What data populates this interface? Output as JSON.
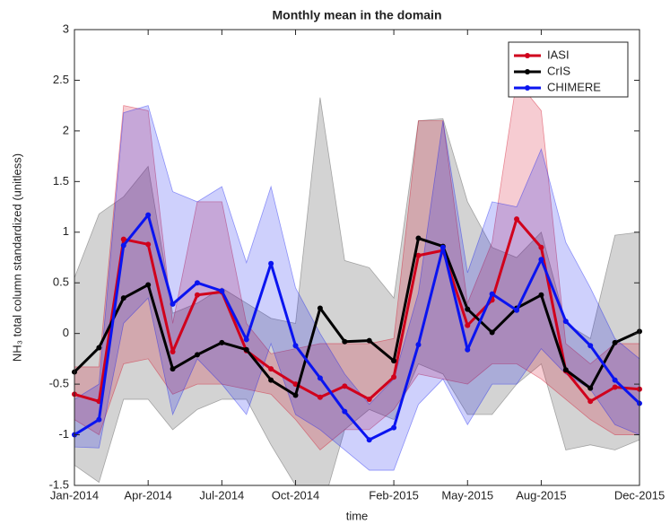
{
  "chart_data": {
    "type": "line",
    "title": "Monthly mean in the domain",
    "x_label": "time",
    "y_label": "NH₃ total column standardized (unitless)",
    "categories": [
      "Jan-2014",
      null,
      null,
      "Apr-2014",
      null,
      null,
      "Jul-2014",
      null,
      null,
      "Oct-2014",
      null,
      null,
      null,
      "Feb-2015",
      null,
      null,
      "May-2015",
      null,
      null,
      "Aug-2015",
      null,
      null,
      null,
      "Dec-2015"
    ],
    "ylim": [
      -1.5,
      3
    ],
    "yticks": [
      -1.5,
      -1,
      -0.5,
      0,
      0.5,
      1,
      1.5,
      2,
      2.5,
      3
    ],
    "grid": false,
    "legend": "top-right",
    "series": [
      {
        "name": "IASI",
        "color": "#d0001c",
        "values": [
          -0.6,
          -0.67,
          0.93,
          0.88,
          -0.18,
          0.38,
          0.41,
          -0.17,
          -0.35,
          -0.5,
          -0.63,
          -0.52,
          -0.65,
          -0.43,
          0.77,
          0.82,
          0.08,
          0.33,
          1.13,
          0.85,
          -0.37,
          -0.67,
          -0.53,
          -0.55
        ],
        "upper": [
          -0.33,
          -0.33,
          2.25,
          2.2,
          0.1,
          1.3,
          1.3,
          0.1,
          -0.2,
          -0.15,
          -0.1,
          -0.1,
          -0.1,
          -0.05,
          2.1,
          2.1,
          0.3,
          0.9,
          2.5,
          2.2,
          -0.1,
          -0.3,
          -0.1,
          -0.1
        ],
        "lower": [
          -0.85,
          -1.0,
          -0.3,
          -0.25,
          -0.6,
          -0.5,
          -0.5,
          -0.55,
          -0.6,
          -0.85,
          -1.15,
          -0.95,
          -0.95,
          -0.75,
          -0.4,
          -0.45,
          -0.5,
          -0.3,
          -0.3,
          -0.45,
          -0.65,
          -0.85,
          -1.0,
          -1.0
        ]
      },
      {
        "name": "CrIS",
        "color": "#000000",
        "values": [
          -0.38,
          -0.14,
          0.35,
          0.48,
          -0.35,
          -0.21,
          -0.09,
          -0.16,
          -0.46,
          -0.61,
          0.25,
          -0.08,
          -0.07,
          -0.27,
          0.94,
          0.86,
          0.24,
          0.01,
          0.25,
          0.38,
          -0.36,
          -0.54,
          -0.09,
          0.02
        ],
        "upper": [
          0.55,
          1.18,
          1.35,
          1.65,
          0.2,
          0.3,
          0.45,
          0.3,
          0.15,
          0.1,
          2.33,
          0.72,
          0.65,
          0.35,
          2.1,
          2.12,
          1.3,
          0.85,
          0.75,
          1.0,
          0.1,
          -0.05,
          0.97,
          1.0
        ],
        "lower": [
          -1.3,
          -1.47,
          -0.65,
          -0.65,
          -0.95,
          -0.75,
          -0.65,
          -0.65,
          -1.1,
          -1.5,
          -1.8,
          -0.95,
          -0.75,
          -0.85,
          -0.3,
          -0.4,
          -0.8,
          -0.8,
          -0.5,
          -0.3,
          -1.15,
          -1.1,
          -1.15,
          -1.05
        ]
      },
      {
        "name": "CHIMERE",
        "color": "#0a14f0",
        "values": [
          -1.0,
          -0.85,
          0.87,
          1.17,
          0.29,
          0.5,
          0.42,
          -0.06,
          0.69,
          -0.12,
          -0.44,
          -0.77,
          -1.05,
          -0.93,
          -0.11,
          0.85,
          -0.16,
          0.39,
          0.23,
          0.73,
          0.12,
          -0.12,
          -0.46,
          -0.69
        ],
        "upper": [
          -0.65,
          -0.5,
          2.18,
          2.25,
          1.4,
          1.3,
          1.45,
          0.7,
          1.45,
          0.45,
          0.0,
          -0.4,
          -0.7,
          -0.45,
          0.4,
          2.1,
          0.6,
          1.3,
          1.25,
          1.82,
          0.9,
          0.45,
          -0.05,
          -0.25
        ],
        "lower": [
          -1.12,
          -1.13,
          0.1,
          0.35,
          -0.8,
          -0.25,
          -0.5,
          -0.8,
          -0.1,
          -0.8,
          -0.95,
          -1.15,
          -1.35,
          -1.35,
          -0.7,
          -0.45,
          -0.9,
          -0.5,
          -0.5,
          -0.15,
          -0.4,
          -0.55,
          -0.9,
          -1.0
        ]
      }
    ]
  }
}
